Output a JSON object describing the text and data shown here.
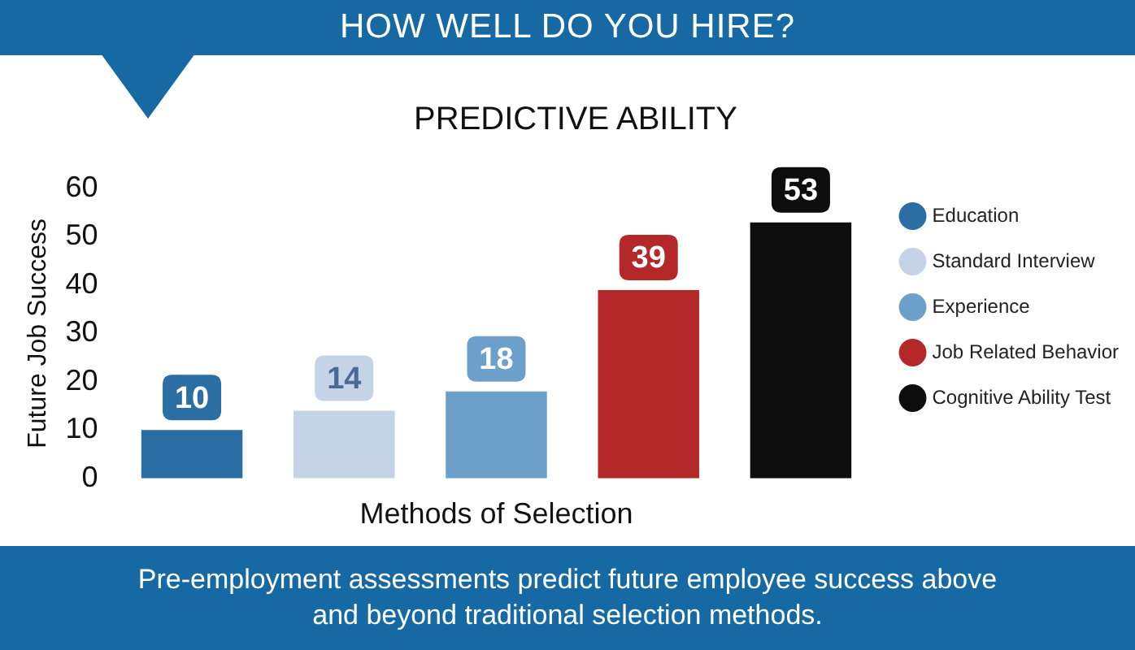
{
  "chart_data": {
    "type": "bar",
    "title": "HOW WELL DO YOU HIRE?",
    "subtitle": "PREDICTIVE ABILITY",
    "xlabel": "Methods of Selection",
    "ylabel": "Future Job Success",
    "categories": [
      null,
      null,
      null,
      null,
      null
    ],
    "series": [
      {
        "name": "Education",
        "color": "#2a6ea3",
        "values": [
          10,
          null,
          null,
          null,
          null
        ]
      },
      {
        "name": "Standard Interview",
        "color": "#c5d3e6",
        "values": [
          null,
          14,
          null,
          null,
          null
        ]
      },
      {
        "name": "Experience",
        "color": "#6d9fcb",
        "values": [
          null,
          null,
          18,
          null,
          null
        ]
      },
      {
        "name": "Job Related Behavior",
        "color": "#b5282a",
        "values": [
          null,
          null,
          null,
          39,
          null
        ]
      },
      {
        "name": "Cognitive Ability Test",
        "color": "#0d0d0d",
        "values": [
          null,
          null,
          null,
          null,
          53
        ]
      }
    ],
    "ylim": [
      0,
      60
    ],
    "yticks": [
      0,
      10,
      20,
      30,
      40,
      50,
      60
    ],
    "stacked": true,
    "grid": false,
    "legend": "right",
    "tick_labels": "y",
    "data_labels": true,
    "annotations": [
      "Pre-employment assessments predict future employee success above and beyond traditional selection methods."
    ]
  }
}
